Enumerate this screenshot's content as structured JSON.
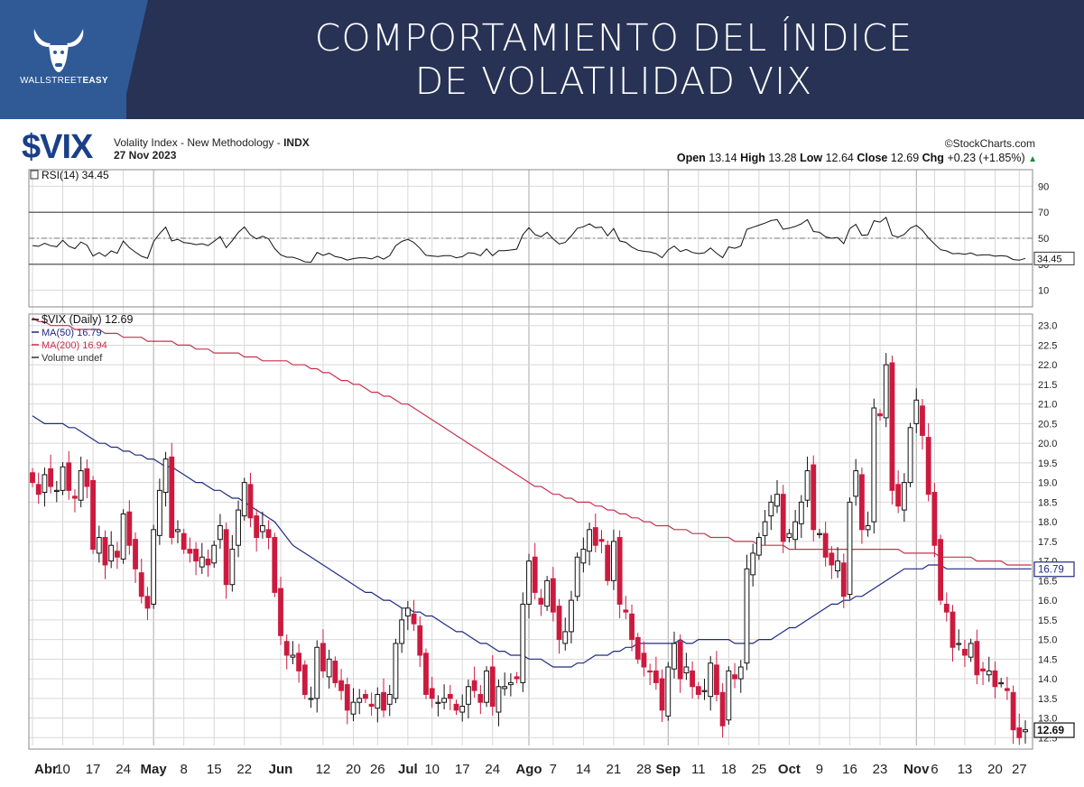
{
  "header": {
    "title_line1": "COMPORTAMIENTO DEL ÍNDICE",
    "title_line2": "DE VOLATILIDAD VIX",
    "brand_plain": "WALLSTREET",
    "brand_bold": "EASY"
  },
  "chart_header": {
    "ticker": "$VIX",
    "description": "Volality Index - New Methodology - ",
    "exchange": "INDX",
    "date": "27 Nov 2023",
    "credit": "©StockCharts.com",
    "open_label": "Open",
    "open": "13.14",
    "high_label": "High",
    "high": "13.28",
    "low_label": "Low",
    "low": "12.64",
    "close_label": "Close",
    "close": "12.69",
    "chg_label": "Chg",
    "chg": "+0.23 (+1.85%)",
    "chg_arrow": "▲"
  },
  "colors": {
    "up": "#111111",
    "down": "#cc1a3f",
    "ma50": "#1f2a80",
    "ma200": "#c8304e",
    "grid": "#d8d8d8"
  },
  "rsi_panel": {
    "label": "RSI(14) 34.45",
    "current": "34.45",
    "levels": [
      90,
      70,
      50,
      30,
      10
    ],
    "level_labels": [
      "90",
      "70",
      "50",
      "30",
      "10"
    ],
    "overbought": 70,
    "midline": 50,
    "oversold": 30
  },
  "x_axis": {
    "labels": [
      {
        "text": "Abr",
        "bold": true,
        "i": 0
      },
      {
        "text": "10",
        "bold": false,
        "i": 5
      },
      {
        "text": "17",
        "bold": false,
        "i": 10
      },
      {
        "text": "24",
        "bold": false,
        "i": 15
      },
      {
        "text": "May",
        "bold": true,
        "i": 20
      },
      {
        "text": "8",
        "bold": false,
        "i": 25
      },
      {
        "text": "15",
        "bold": false,
        "i": 30
      },
      {
        "text": "22",
        "bold": false,
        "i": 35
      },
      {
        "text": "Jun",
        "bold": true,
        "i": 41
      },
      {
        "text": "12",
        "bold": false,
        "i": 48
      },
      {
        "text": "20",
        "bold": false,
        "i": 53
      },
      {
        "text": "26",
        "bold": false,
        "i": 57
      },
      {
        "text": "Jul",
        "bold": true,
        "i": 62
      },
      {
        "text": "10",
        "bold": false,
        "i": 66
      },
      {
        "text": "17",
        "bold": false,
        "i": 71
      },
      {
        "text": "24",
        "bold": false,
        "i": 76
      },
      {
        "text": "Ago",
        "bold": true,
        "i": 82
      },
      {
        "text": "7",
        "bold": false,
        "i": 86
      },
      {
        "text": "14",
        "bold": false,
        "i": 91
      },
      {
        "text": "21",
        "bold": false,
        "i": 96
      },
      {
        "text": "28",
        "bold": false,
        "i": 101
      },
      {
        "text": "Sep",
        "bold": true,
        "i": 105
      },
      {
        "text": "11",
        "bold": false,
        "i": 110
      },
      {
        "text": "18",
        "bold": false,
        "i": 115
      },
      {
        "text": "25",
        "bold": false,
        "i": 120
      },
      {
        "text": "Oct",
        "bold": true,
        "i": 125
      },
      {
        "text": "9",
        "bold": false,
        "i": 130
      },
      {
        "text": "16",
        "bold": false,
        "i": 135
      },
      {
        "text": "23",
        "bold": false,
        "i": 140
      },
      {
        "text": "Nov",
        "bold": true,
        "i": 146
      },
      {
        "text": "6",
        "bold": false,
        "i": 149
      },
      {
        "text": "13",
        "bold": false,
        "i": 154
      },
      {
        "text": "20",
        "bold": false,
        "i": 159
      },
      {
        "text": "27",
        "bold": false,
        "i": 163
      }
    ],
    "major_gridlines": [
      20,
      82,
      105,
      146
    ]
  },
  "chart_data": {
    "type": "candlestick",
    "series_label": "$VIX (Daily) 12.69",
    "ma50_label": "MA(50) 16.79",
    "ma200_label": "MA(200) 16.94",
    "volume_label": "Volume undef",
    "ylim": [
      12.3,
      23.2
    ],
    "y_ticks": [
      23.0,
      22.5,
      22.0,
      21.5,
      21.0,
      20.5,
      20.0,
      19.5,
      19.0,
      18.5,
      18.0,
      17.5,
      17.0,
      16.5,
      16.0,
      15.5,
      15.0,
      14.5,
      14.0,
      13.5,
      13.0,
      12.5
    ],
    "y_tick_labels": [
      "23.0",
      "22.5",
      "22.0",
      "21.5",
      "21.0",
      "20.5",
      "20.0",
      "19.5",
      "19.0",
      "18.5",
      "18.0",
      "17.5",
      "17.0",
      "16.5",
      "16.0",
      "15.5",
      "15.0",
      "14.5",
      "14.0",
      "13.5",
      "13.0",
      "12.5"
    ],
    "last_close": "12.69",
    "ma50_last": "16.79",
    "date_range": [
      "2023-04-03",
      "2023-11-27"
    ],
    "close": [
      19.0,
      18.7,
      19.2,
      18.9,
      18.8,
      19.4,
      18.8,
      18.6,
      19.3,
      18.9,
      17.3,
      17.6,
      16.9,
      17.4,
      17.1,
      18.2,
      17.4,
      16.8,
      16.1,
      15.8,
      17.8,
      18.8,
      19.6,
      17.6,
      17.8,
      17.3,
      17.2,
      17.0,
      17.1,
      16.9,
      17.4,
      17.9,
      16.4,
      17.3,
      18.3,
      19.0,
      18.1,
      17.6,
      17.9,
      17.6,
      16.2,
      15.1,
      14.6,
      14.6,
      14.2,
      13.6,
      13.5,
      14.8,
      14.2,
      14.5,
      13.9,
      13.7,
      13.2,
      13.4,
      13.5,
      13.5,
      13.3,
      13.6,
      13.2,
      13.6,
      14.9,
      15.5,
      15.8,
      15.4,
      14.6,
      13.6,
      13.5,
      13.4,
      13.5,
      13.5,
      13.2,
      13.3,
      13.8,
      13.7,
      13.4,
      14.2,
      13.3,
      13.8,
      13.8,
      13.9,
      14.0,
      15.9,
      17.0,
      16.2,
      15.9,
      16.5,
      15.7,
      15.0,
      15.2,
      16.0,
      17.1,
      17.3,
      17.8,
      17.4,
      17.5,
      16.5,
      17.5,
      15.9,
      15.7,
      15.0,
      14.5,
      14.3,
      14.2,
      13.9,
      13.2,
      14.3,
      14.9,
      14.0,
      14.3,
      13.8,
      13.6,
      13.7,
      14.4,
      13.6,
      12.8,
      14.2,
      14.0,
      14.3,
      16.8,
      17.2,
      17.6,
      18.0,
      18.5,
      18.7,
      17.5,
      17.7,
      18.0,
      18.5,
      19.3,
      17.8,
      17.7,
      17.1,
      16.9,
      17.0,
      16.1,
      18.5,
      19.3,
      17.8,
      17.9,
      20.9,
      20.7,
      22.0,
      18.8,
      18.4,
      19.0,
      20.4,
      21.1,
      20.2,
      18.7,
      17.4,
      16.0,
      15.7,
      14.8,
      14.9,
      14.6,
      14.9,
      14.1,
      14.2,
      14.2,
      13.8,
      13.9,
      13.7,
      12.7,
      12.5,
      12.7
    ],
    "ma50": [
      20.7,
      20.6,
      20.5,
      20.5,
      20.5,
      20.5,
      20.4,
      20.4,
      20.3,
      20.2,
      20.1,
      20.0,
      20.0,
      19.9,
      19.9,
      19.8,
      19.8,
      19.7,
      19.7,
      19.6,
      19.6,
      19.5,
      19.4,
      19.4,
      19.3,
      19.2,
      19.1,
      19.0,
      19.0,
      18.9,
      18.8,
      18.8,
      18.7,
      18.6,
      18.6,
      18.5,
      18.4,
      18.3,
      18.2,
      18.1,
      18.0,
      17.8,
      17.6,
      17.4,
      17.3,
      17.2,
      17.1,
      17.0,
      16.9,
      16.8,
      16.7,
      16.6,
      16.5,
      16.4,
      16.3,
      16.2,
      16.2,
      16.1,
      16.0,
      16.0,
      15.9,
      15.8,
      15.8,
      15.7,
      15.7,
      15.6,
      15.6,
      15.5,
      15.4,
      15.3,
      15.2,
      15.2,
      15.1,
      15.0,
      14.9,
      14.9,
      14.8,
      14.7,
      14.7,
      14.6,
      14.6,
      14.6,
      14.5,
      14.5,
      14.5,
      14.4,
      14.3,
      14.3,
      14.3,
      14.3,
      14.4,
      14.4,
      14.5,
      14.6,
      14.6,
      14.6,
      14.7,
      14.7,
      14.8,
      14.8,
      14.9,
      14.9,
      14.9,
      14.9,
      14.9,
      14.9,
      14.9,
      15.0,
      14.9,
      14.9,
      15.0,
      15.0,
      15.0,
      15.0,
      15.0,
      15.0,
      14.9,
      14.9,
      14.9,
      14.9,
      15.0,
      15.0,
      15.0,
      15.1,
      15.2,
      15.3,
      15.3,
      15.4,
      15.5,
      15.6,
      15.7,
      15.8,
      15.9,
      15.9,
      16.0,
      16.0,
      16.1,
      16.1,
      16.2,
      16.3,
      16.4,
      16.5,
      16.6,
      16.7,
      16.8,
      16.8,
      16.8,
      16.8,
      16.9,
      16.9,
      16.9,
      16.8,
      16.8,
      16.8,
      16.8,
      16.8,
      16.8,
      16.8,
      16.8,
      16.8,
      16.8,
      16.8,
      16.8,
      16.8,
      16.8,
      16.8
    ],
    "ma200": [
      23.2,
      23.1,
      23.1,
      23.0,
      23.0,
      23.0,
      23.0,
      22.9,
      22.9,
      22.9,
      22.9,
      22.9,
      22.8,
      22.8,
      22.8,
      22.7,
      22.7,
      22.7,
      22.7,
      22.6,
      22.6,
      22.6,
      22.6,
      22.6,
      22.5,
      22.5,
      22.5,
      22.4,
      22.4,
      22.4,
      22.3,
      22.3,
      22.3,
      22.3,
      22.3,
      22.2,
      22.2,
      22.2,
      22.1,
      22.1,
      22.1,
      22.1,
      22.1,
      22.0,
      22.0,
      22.0,
      21.9,
      21.9,
      21.8,
      21.8,
      21.7,
      21.6,
      21.6,
      21.5,
      21.5,
      21.4,
      21.3,
      21.3,
      21.2,
      21.2,
      21.1,
      21.0,
      21.0,
      20.9,
      20.8,
      20.7,
      20.6,
      20.5,
      20.4,
      20.3,
      20.2,
      20.1,
      20.0,
      19.9,
      19.8,
      19.7,
      19.6,
      19.5,
      19.4,
      19.3,
      19.2,
      19.1,
      19.0,
      18.9,
      18.9,
      18.8,
      18.7,
      18.7,
      18.6,
      18.6,
      18.5,
      18.5,
      18.5,
      18.4,
      18.4,
      18.3,
      18.3,
      18.2,
      18.2,
      18.1,
      18.1,
      18.0,
      18.0,
      17.9,
      17.9,
      17.9,
      17.8,
      17.8,
      17.8,
      17.7,
      17.7,
      17.7,
      17.6,
      17.6,
      17.6,
      17.6,
      17.5,
      17.5,
      17.5,
      17.5,
      17.4,
      17.4,
      17.4,
      17.4,
      17.4,
      17.3,
      17.3,
      17.3,
      17.3,
      17.3,
      17.3,
      17.3,
      17.3,
      17.3,
      17.3,
      17.3,
      17.3,
      17.3,
      17.3,
      17.3,
      17.3,
      17.3,
      17.3,
      17.3,
      17.2,
      17.2,
      17.2,
      17.2,
      17.2,
      17.2,
      17.1,
      17.1,
      17.1,
      17.1,
      17.1,
      17.1,
      17.0,
      17.0,
      17.0,
      17.0,
      17.0,
      16.9,
      16.9,
      16.9,
      16.9,
      16.9
    ],
    "rsi": [
      44.4,
      43.8,
      46.2,
      44.3,
      43.5,
      48.5,
      43.9,
      42.0,
      47.1,
      44.7,
      36.3,
      39.0,
      36.1,
      40.3,
      38.5,
      47.9,
      42.8,
      39.3,
      36.2,
      34.6,
      47.4,
      53.6,
      58.6,
      47.9,
      49.2,
      46.7,
      46.2,
      45.1,
      45.8,
      44.4,
      47.7,
      51.3,
      42.8,
      48.2,
      54.5,
      58.7,
      52.5,
      49.5,
      51.5,
      49.6,
      42.1,
      37.3,
      35.4,
      35.4,
      33.9,
      31.9,
      31.5,
      39.1,
      36.8,
      38.5,
      35.9,
      35.1,
      33.2,
      34.4,
      35.0,
      35.0,
      34.1,
      36.2,
      33.9,
      36.6,
      44.3,
      47.6,
      49.2,
      46.8,
      42.2,
      36.9,
      36.4,
      35.9,
      36.7,
      36.7,
      35.0,
      35.8,
      38.9,
      38.3,
      36.6,
      41.8,
      36.6,
      40.4,
      40.4,
      41.0,
      41.7,
      52.8,
      58.1,
      52.9,
      51.1,
      54.6,
      49.6,
      45.6,
      46.8,
      51.8,
      57.7,
      58.8,
      61.2,
      58.1,
      58.6,
      51.9,
      57.5,
      48.0,
      46.9,
      43.2,
      40.8,
      39.9,
      39.5,
      38.1,
      35.1,
      41.0,
      44.0,
      39.8,
      41.4,
      39.1,
      38.2,
      38.8,
      42.5,
      38.5,
      35.1,
      43.3,
      42.3,
      44.0,
      56.8,
      58.5,
      60.1,
      61.7,
      63.6,
      64.4,
      56.9,
      57.8,
      59.1,
      61.1,
      64.3,
      55.2,
      54.6,
      51.1,
      50.0,
      50.6,
      45.8,
      57.4,
      60.7,
      52.2,
      52.7,
      63.5,
      62.4,
      66.1,
      52.3,
      50.8,
      53.0,
      57.8,
      59.9,
      56.1,
      50.2,
      45.6,
      41.2,
      40.3,
      38.1,
      38.4,
      37.7,
      38.7,
      36.8,
      37.2,
      37.2,
      36.2,
      36.6,
      36.1,
      33.6,
      33.1,
      34.5
    ]
  }
}
